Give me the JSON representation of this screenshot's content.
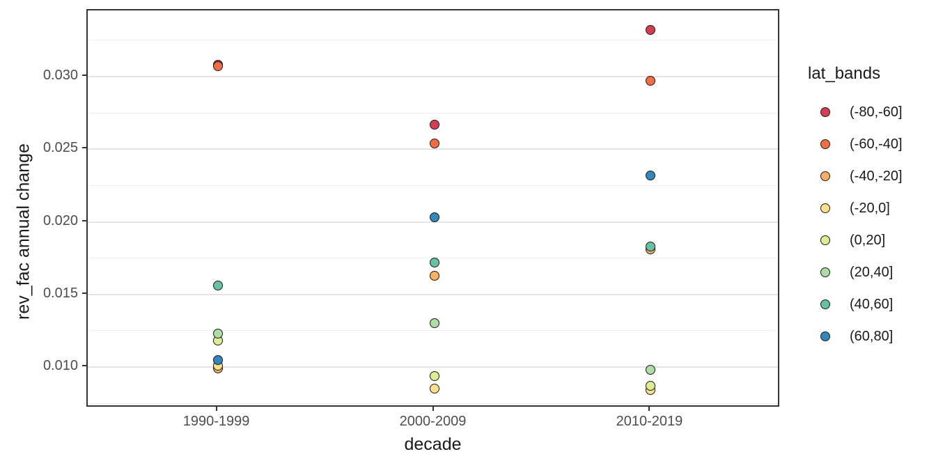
{
  "chart_data": {
    "type": "scatter",
    "title": "",
    "xlabel": "decade",
    "ylabel": "rev_fac annual change",
    "categories": [
      "1990-1999",
      "2000-2009",
      "2010-2019"
    ],
    "yticks": [
      0.01,
      0.015,
      0.02,
      0.025,
      0.03
    ],
    "ytick_labels": [
      "0.010",
      "0.015",
      "0.020",
      "0.025",
      "0.030"
    ],
    "ylim": [
      0.00717,
      0.03456
    ],
    "grid": true,
    "legend_title": "lat_bands",
    "legend_position": "right",
    "marker_stroke": "#1a1a1a",
    "series": [
      {
        "name": "(-80,-60]",
        "color": "#d53e4f",
        "values": [
          0.0308,
          0.0267,
          0.0332
        ]
      },
      {
        "name": "(-60,-40]",
        "color": "#f46d43",
        "values": [
          0.0307,
          0.0254,
          0.0297
        ]
      },
      {
        "name": "(-40,-20]",
        "color": "#fdae61",
        "values": [
          0.0099,
          0.0163,
          0.0181
        ]
      },
      {
        "name": "(-20,0]",
        "color": "#fee08b",
        "values": [
          0.0101,
          0.0085,
          0.0084
        ]
      },
      {
        "name": "(0,20]",
        "color": "#dcee91",
        "values": [
          0.0118,
          0.0094,
          0.0087
        ]
      },
      {
        "name": "(20,40]",
        "color": "#abdda4",
        "values": [
          0.0123,
          0.013,
          0.0098
        ]
      },
      {
        "name": "(40,60]",
        "color": "#66c2a5",
        "values": [
          0.0156,
          0.0172,
          0.0183
        ]
      },
      {
        "name": "(60,80]",
        "color": "#3288bd",
        "values": [
          0.0105,
          0.0203,
          0.0232
        ]
      }
    ]
  }
}
